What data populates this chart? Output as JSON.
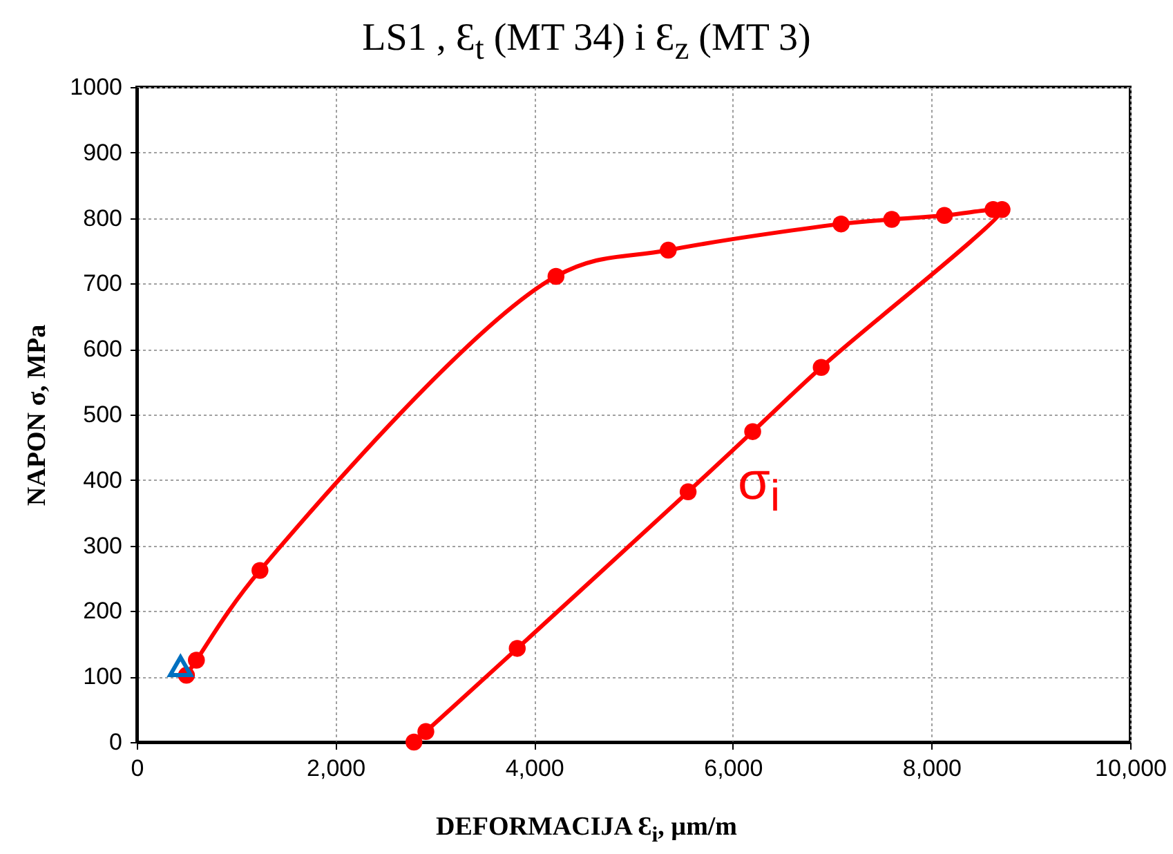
{
  "chart_data": {
    "type": "line",
    "title": "LS1 ,  Ɛ$_{t}$ (MT 34) i Ɛ$_{z}$ (MT 3)",
    "xlabel": "DEFORMACIJA  Ɛ$_{i}$, µm/m",
    "ylabel": "NAPON σ, MPa",
    "xlim": [
      0,
      10000
    ],
    "xticks": [
      0,
      {
        "value": 2000,
        "label": "2,000"
      },
      {
        "value": 4000,
        "label": "4,000"
      },
      {
        "value": 6000,
        "label": "6,000"
      },
      {
        "value": 8000,
        "label": "8,000"
      },
      {
        "value": 10000,
        "label": "10,000"
      }
    ],
    "ylim": [
      0,
      1000
    ],
    "yticks": [
      0,
      100,
      200,
      300,
      400,
      500,
      600,
      700,
      800,
      900,
      1000
    ],
    "grid": true,
    "marker": "circle",
    "series": [
      {
        "name": "σ$_{i}$",
        "color": "#ff0000",
        "x": [
          500,
          600,
          1240,
          4220,
          5350,
          7090,
          7600,
          8130,
          8620,
          8710,
          6890,
          6200,
          5550,
          3830,
          2910,
          2790
        ],
        "values": [
          102,
          125,
          262,
          711,
          751,
          791,
          798,
          804,
          813,
          813,
          572,
          474,
          382,
          143,
          16,
          0
        ]
      },
      {
        "type": "scatter",
        "marker": "triangle",
        "color": "#0070c0",
        "x": [
          440
        ],
        "values": [
          116
        ]
      }
    ]
  }
}
